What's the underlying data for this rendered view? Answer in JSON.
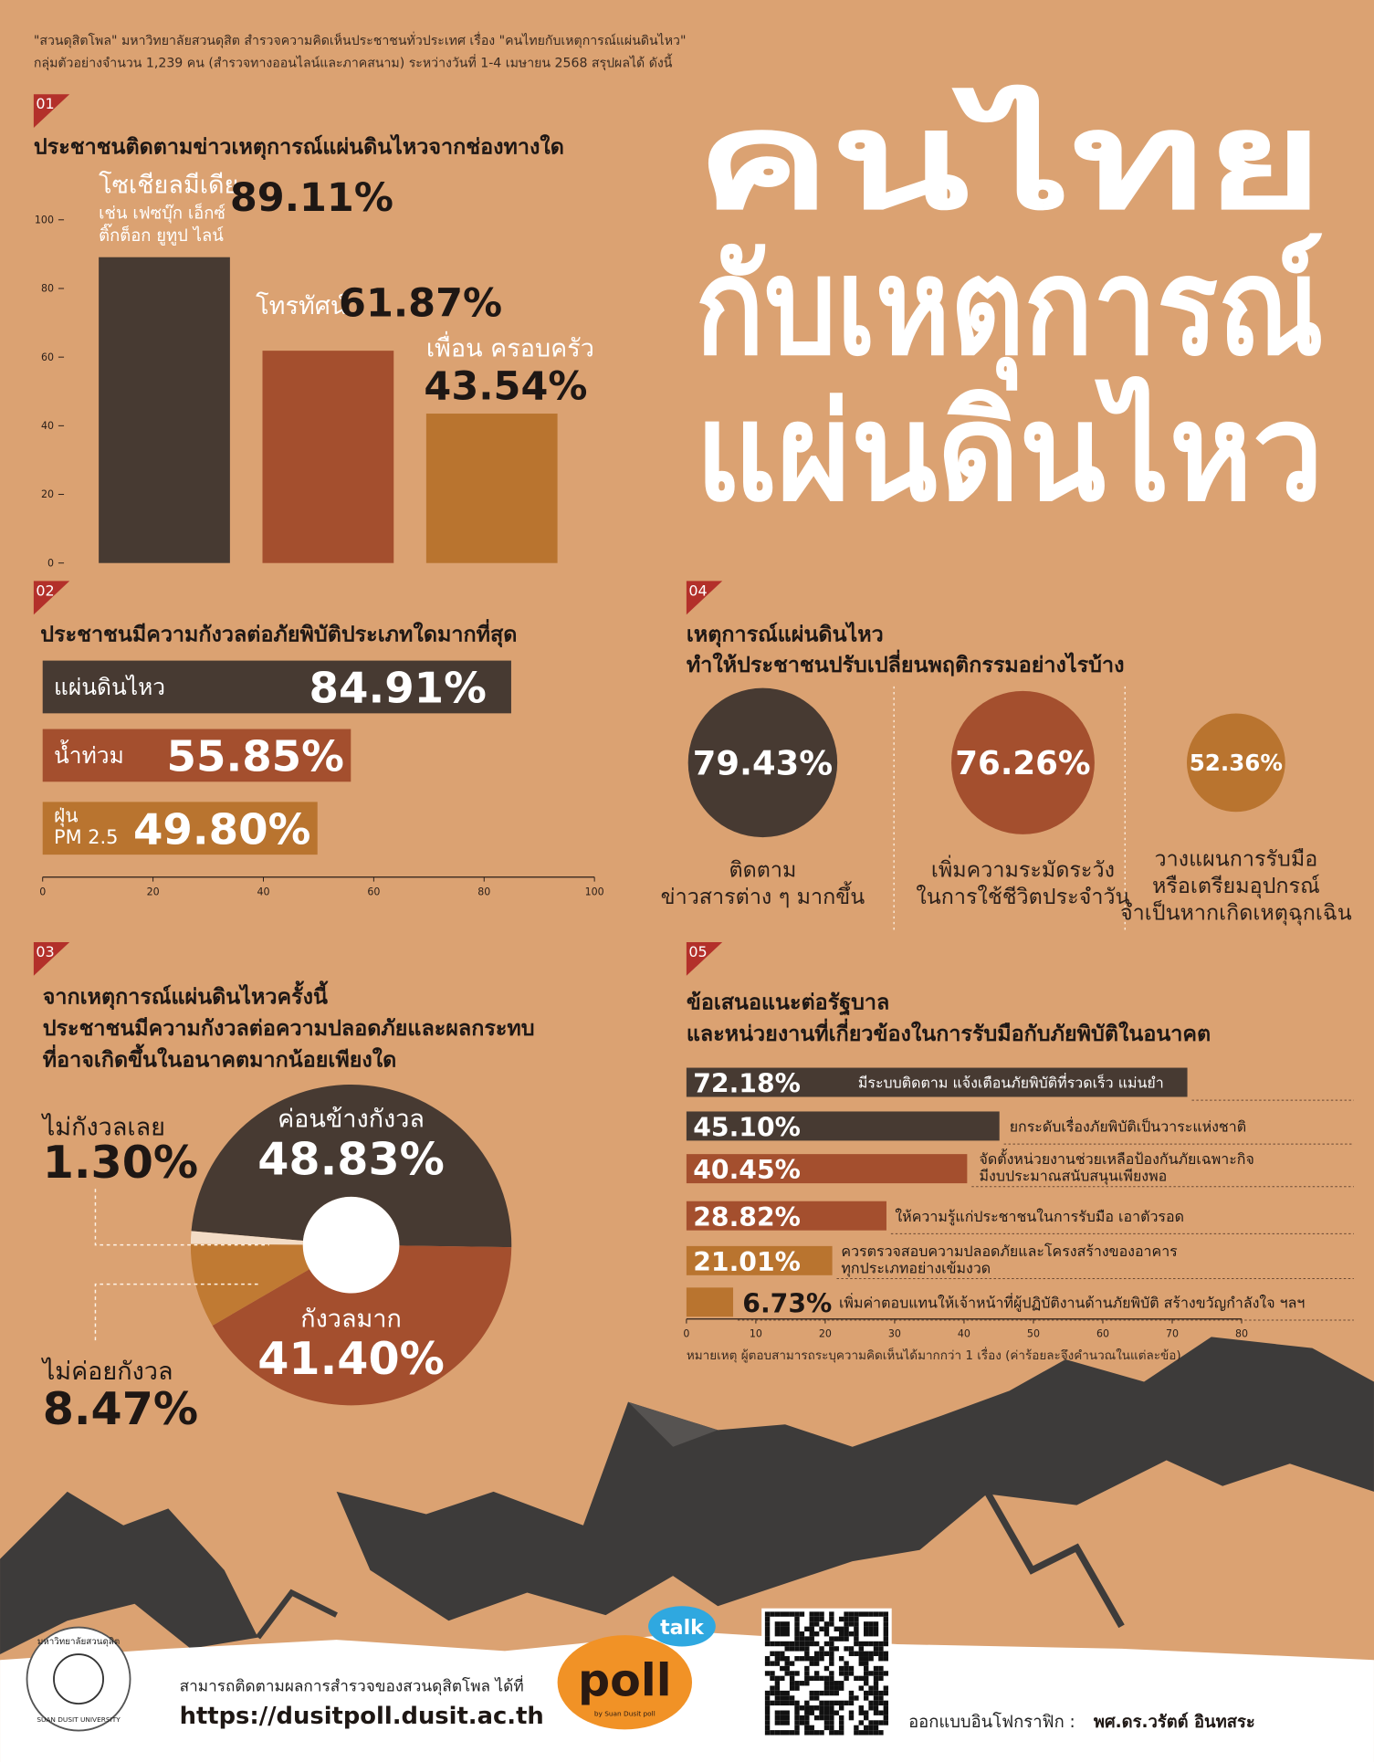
{
  "header": {
    "lines": [
      "\"สวนดุสิตโพล\" มหาวิทยาลัยสวนดุสิต สำรวจความคิดเห็นประชาชนทั่วประเทศ เรื่อง \"คนไทยกับเหตุการณ์แผ่นดินไหว\"",
      "กลุ่มตัวอย่างจำนวน 1,239 คน (สำรวจทางออนไลน์และภาคสนาม) ระหว่างวันที่ 1-4 เมษายน 2568 สรุปผลได้ ดังนี้"
    ]
  },
  "title": {
    "lines": [
      "คนไทย",
      "กับเหตุการณ์",
      "แผ่นดินไหว"
    ]
  },
  "chart_data": [
    {
      "type": "bar",
      "number": "01",
      "title": "ประชาชนติดตามข่าวเหตุการณ์แผ่นดินไหวจากช่องทางใด",
      "categories": [
        "โซเชียลมีเดีย",
        "โทรทัศน์",
        "เพื่อน ครอบครัว"
      ],
      "category_note": [
        "เช่น เฟซบุ๊ก เอ็กซ์",
        "ติ๊กต็อก ยูทูป ไลน์"
      ],
      "values": [
        89.11,
        61.87,
        43.54
      ],
      "value_labels": [
        "89.11%",
        "61.87%",
        "43.54%"
      ],
      "colors": [
        "#473a32",
        "#a44f2e",
        "#b9742f"
      ],
      "ylim": [
        0,
        100
      ],
      "yticks": [
        0,
        20,
        40,
        60,
        80,
        100
      ]
    },
    {
      "type": "hbar",
      "number": "02",
      "title": "ประชาชนมีความกังวลต่อภัยพิบัติประเภทใดมากที่สุด",
      "categories": [
        [
          "แผ่นดินไหว"
        ],
        [
          "น้ำท่วม"
        ],
        [
          "ฝุ่น",
          "PM 2.5"
        ]
      ],
      "values": [
        84.91,
        55.85,
        49.8
      ],
      "value_labels": [
        "84.91%",
        "55.85%",
        "49.80%"
      ],
      "colors": [
        "#473a32",
        "#a44f2e",
        "#b9742f"
      ],
      "xlim": [
        0,
        100
      ],
      "xticks": [
        0,
        20,
        40,
        60,
        80,
        100
      ]
    },
    {
      "type": "donut",
      "number": "03",
      "title": [
        "จากเหตุการณ์แผ่นดินไหวครั้งนี้",
        "ประชาชนมีความกังวลต่อความปลอดภัยและผลกระทบ",
        "ที่อาจเกิดขึ้นในอนาคตมากน้อยเพียงใด"
      ],
      "categories": [
        "ค่อนข้างกังวล",
        "กังวลมาก",
        "ไม่ค่อยกังวล",
        "ไม่กังวลเลย"
      ],
      "values": [
        48.83,
        41.4,
        8.47,
        1.3
      ],
      "value_labels": [
        "48.83%",
        "41.40%",
        "8.47%",
        "1.30%"
      ],
      "colors": [
        "#473a32",
        "#a44f2e",
        "#c07a33",
        "#f3dcc6"
      ]
    },
    {
      "type": "circles",
      "number": "04",
      "title": [
        "เหตุการณ์แผ่นดินไหว",
        "ทำให้ประชาชนปรับเปลี่ยนพฤติกรรมอย่างไรบ้าง"
      ],
      "categories": [
        [
          "ติดตาม",
          "ข่าวสารต่าง ๆ มากขึ้น"
        ],
        [
          "เพิ่มความระมัดระวัง",
          "ในการใช้ชีวิตประจำวัน"
        ],
        [
          "วางแผนการรับมือ",
          "หรือเตรียมอุปกรณ์",
          "จำเป็นหากเกิดเหตุฉุกเฉิน"
        ]
      ],
      "values": [
        79.43,
        76.26,
        52.36
      ],
      "value_labels": [
        "79.43%",
        "76.26%",
        "52.36%"
      ],
      "colors": [
        "#473a32",
        "#a44f2e",
        "#b9742f"
      ]
    },
    {
      "type": "hbar",
      "number": "05",
      "title": [
        "ข้อเสนอแนะต่อรัฐบาล",
        "และหน่วยงานที่เกี่ยวข้องในการรับมือกับภัยพิบัติในอนาคต"
      ],
      "categories": [
        [
          "มีระบบติดตาม แจ้งเตือนภัยพิบัติที่รวดเร็ว แม่นยำ"
        ],
        [
          "ยกระดับเรื่องภัยพิบัติเป็นวาระแห่งชาติ"
        ],
        [
          "จัดตั้งหน่วยงานช่วยเหลือป้องกันภัยเฉพาะกิจ",
          "มีงบประมาณสนับสนุนเพียงพอ"
        ],
        [
          "ให้ความรู้แก่ประชาชนในการรับมือ เอาตัวรอด"
        ],
        [
          "ควรตรวจสอบความปลอดภัยและโครงสร้างของอาคาร",
          "ทุกประเภทอย่างเข้มงวด"
        ],
        [
          "เพิ่มค่าตอบแทนให้เจ้าหน้าที่ผู้ปฏิบัติงานด้านภัยพิบัติ  สร้างขวัญกำลังใจ ฯลฯ"
        ]
      ],
      "values": [
        72.18,
        45.1,
        40.45,
        28.82,
        21.01,
        6.73
      ],
      "value_labels": [
        "72.18%",
        "45.10%",
        "40.45%",
        "28.82%",
        "21.01%",
        "6.73%"
      ],
      "colors": [
        "#473a32",
        "#473a32",
        "#a44f2e",
        "#a44f2e",
        "#b9742f",
        "#b9742f"
      ],
      "xlim": [
        0,
        80
      ],
      "xticks": [
        0,
        10,
        20,
        30,
        40,
        50,
        60,
        70,
        80
      ],
      "note": "หมายเหตุ  ผู้ตอบสามารถระบุความคิดเห็นได้มากกว่า 1 เรื่อง (ค่าร้อยละจึงคำนวณในแต่ละข้อ)"
    }
  ],
  "footer": {
    "follow_text": "สามารถติดตามผลการสำรวจของสวนดุสิตโพล ได้ที่",
    "url": "https://dusitpoll.dusit.ac.th",
    "designer_label": "ออกแบบอินโฟกราฟิก :",
    "designer": "พศ.ดร.วรัตต์ อินทสระ",
    "university_th": "มหาวิทยาลัยสวนดุสิต",
    "university_en": "SUAN DUSIT UNIVERSITY",
    "logo_talk": "talk",
    "logo_poll": "poll",
    "logo_by": "by Suan Dusit poll"
  }
}
